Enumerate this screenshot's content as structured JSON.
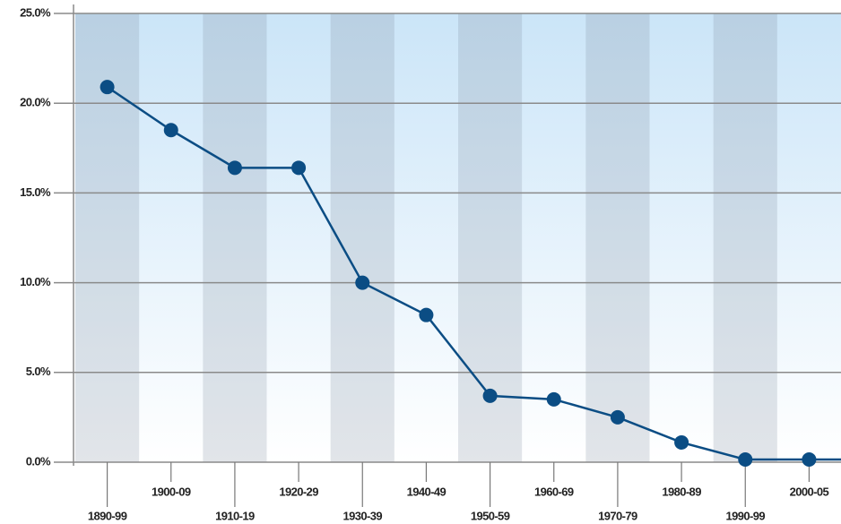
{
  "chart_data": {
    "type": "line",
    "categories": [
      "1890-99",
      "1900-09",
      "1910-19",
      "1920-29",
      "1930-39",
      "1940-49",
      "1950-59",
      "1960-69",
      "1970-79",
      "1980-89",
      "1990-99",
      "2000-05"
    ],
    "series": [
      {
        "color": "#0b4d84",
        "values": [
          20.9,
          18.5,
          16.4,
          16.4,
          10.0,
          8.2,
          3.7,
          3.5,
          2.5,
          1.1,
          0.15,
          0.15
        ]
      }
    ],
    "ylim": [
      0,
      25
    ],
    "yticks": [
      {
        "value": 0,
        "label": "0.0%"
      },
      {
        "value": 5,
        "label": "5.0%"
      },
      {
        "value": 10,
        "label": "10.0%"
      },
      {
        "value": 15,
        "label": "15.0%"
      },
      {
        "value": 20,
        "label": "20.0%"
      },
      {
        "value": 25,
        "label": "25.0%"
      }
    ],
    "grid": true
  }
}
